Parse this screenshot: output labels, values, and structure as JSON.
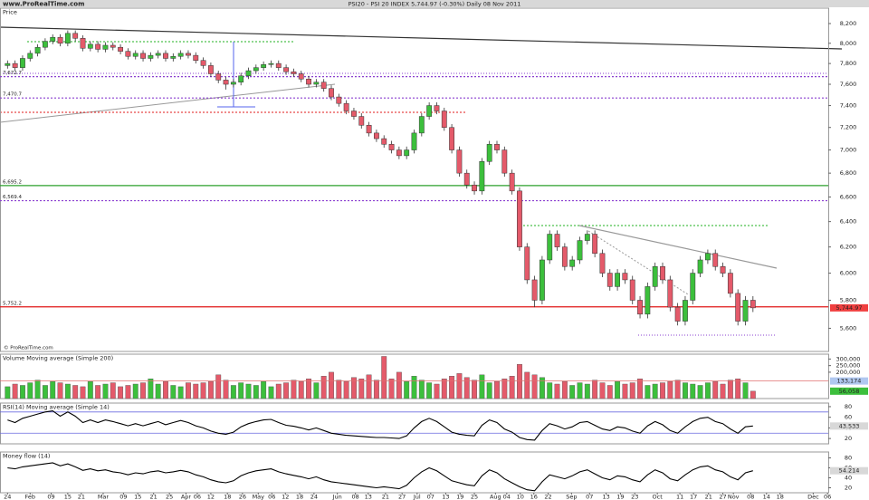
{
  "header": {
    "site": "www.ProRealTime.com",
    "title": "PSI20 - PSI 20 INDEX    5,744.97 (-0.30%)    Daily  08 Nov 2011"
  },
  "chart_data": [
    {
      "type": "candlestick",
      "title": "Price",
      "watermark": "© ProRealTime.com",
      "open": [
        7780,
        7800,
        7760,
        7850,
        7900,
        7960,
        8020,
        8060,
        8000,
        8100,
        8050,
        7950,
        7990,
        7940,
        7980,
        7960,
        7920,
        7870,
        7900,
        7850,
        7880,
        7900,
        7850,
        7870,
        7900,
        7880,
        7830,
        7780,
        7700,
        7640,
        7600,
        7620,
        7680,
        7730,
        7760,
        7790,
        7800,
        7760,
        7720,
        7700,
        7650,
        7600,
        7620,
        7560,
        7480,
        7420,
        7350,
        7300,
        7220,
        7150,
        7100,
        7050,
        7000,
        6950,
        7000,
        7150,
        7300,
        7400,
        7350,
        7200,
        7000,
        6800,
        6700,
        6650,
        6900,
        7050,
        7000,
        6800,
        6650,
        6200,
        5950,
        5800,
        6100,
        6300,
        6200,
        6050,
        6100,
        6250,
        6300,
        6150,
        6000,
        5900,
        6000,
        5950,
        5800,
        5700,
        5900,
        6050,
        5950,
        5750,
        5650,
        5800,
        6000,
        6100,
        6150,
        6050,
        6000,
        5850,
        5650,
        5800
      ],
      "high": [
        7830,
        7830,
        7880,
        7930,
        7990,
        8050,
        8090,
        8090,
        8130,
        8130,
        8080,
        8020,
        8020,
        8010,
        8010,
        7990,
        7950,
        7930,
        7930,
        7910,
        7930,
        7930,
        7900,
        7930,
        7930,
        7910,
        7860,
        7810,
        7730,
        7670,
        7650,
        7710,
        7760,
        7790,
        7820,
        7830,
        7830,
        7790,
        7750,
        7730,
        7680,
        7650,
        7650,
        7590,
        7510,
        7450,
        7380,
        7330,
        7250,
        7180,
        7130,
        7080,
        7030,
        7030,
        7180,
        7330,
        7430,
        7430,
        7380,
        7230,
        7030,
        6830,
        6730,
        6930,
        7080,
        7080,
        7030,
        6830,
        6680,
        6230,
        5980,
        6130,
        6330,
        6330,
        6230,
        6130,
        6280,
        6330,
        6330,
        6180,
        6030,
        6030,
        6030,
        5980,
        5830,
        5930,
        6080,
        6080,
        5980,
        5780,
        5830,
        6030,
        6130,
        6180,
        6180,
        6080,
        6030,
        5880,
        5830,
        5830
      ],
      "low": [
        7750,
        7730,
        7730,
        7820,
        7870,
        7930,
        7990,
        7970,
        7970,
        8020,
        7920,
        7920,
        7910,
        7910,
        7930,
        7890,
        7840,
        7840,
        7820,
        7820,
        7850,
        7820,
        7820,
        7840,
        7850,
        7800,
        7750,
        7670,
        7610,
        7550,
        7570,
        7590,
        7650,
        7700,
        7730,
        7760,
        7730,
        7690,
        7670,
        7620,
        7570,
        7570,
        7530,
        7450,
        7390,
        7320,
        7270,
        7190,
        7120,
        7070,
        7020,
        6970,
        6920,
        6920,
        6970,
        7120,
        7270,
        7320,
        7170,
        6970,
        6770,
        6670,
        6620,
        6620,
        6870,
        6970,
        6770,
        6620,
        6170,
        5920,
        5750,
        5770,
        6070,
        6170,
        6020,
        6020,
        6070,
        6220,
        6120,
        5970,
        5870,
        5870,
        5920,
        5770,
        5670,
        5670,
        5870,
        5920,
        5720,
        5620,
        5620,
        5770,
        5970,
        6070,
        6020,
        5970,
        5820,
        5620,
        5620,
        5715
      ],
      "close": [
        7800,
        7760,
        7850,
        7900,
        7960,
        8020,
        8060,
        8000,
        8100,
        8050,
        7950,
        7990,
        7940,
        7980,
        7960,
        7920,
        7870,
        7900,
        7850,
        7880,
        7900,
        7850,
        7870,
        7900,
        7880,
        7830,
        7780,
        7700,
        7640,
        7600,
        7620,
        7680,
        7730,
        7760,
        7790,
        7800,
        7760,
        7720,
        7700,
        7650,
        7600,
        7620,
        7560,
        7480,
        7420,
        7350,
        7300,
        7220,
        7150,
        7100,
        7050,
        7000,
        6950,
        7000,
        7150,
        7300,
        7400,
        7350,
        7200,
        7000,
        6800,
        6700,
        6650,
        6900,
        7050,
        7000,
        6800,
        6650,
        6200,
        5950,
        5800,
        6100,
        6300,
        6200,
        6050,
        6100,
        6250,
        6300,
        6150,
        6000,
        5900,
        6000,
        5950,
        5800,
        5700,
        5900,
        6050,
        5950,
        5750,
        5650,
        5800,
        6000,
        6100,
        6150,
        6050,
        6000,
        5850,
        5650,
        5800,
        5745
      ],
      "up_color": "#3cbf3c",
      "down_color": "#e45a6a",
      "xlim": [
        -1,
        109
      ],
      "ylim": [
        5440,
        8350
      ],
      "log": true,
      "yticks": [
        {
          "value": 5600,
          "label": "5,600"
        },
        {
          "value": 5800,
          "label": "5,800"
        },
        {
          "value": 6000,
          "label": "6,000"
        },
        {
          "value": 6200,
          "label": "6,200"
        },
        {
          "value": 6400,
          "label": "6,400"
        },
        {
          "value": 6600,
          "label": "6,600"
        },
        {
          "value": 6800,
          "label": "6,800"
        },
        {
          "value": 7000,
          "label": "7,000"
        },
        {
          "value": 7200,
          "label": "7,200"
        },
        {
          "value": 7400,
          "label": "7,400"
        },
        {
          "value": 7600,
          "label": "7,600"
        },
        {
          "value": 7800,
          "label": "7,800"
        },
        {
          "value": 8000,
          "label": "8,000"
        },
        {
          "value": 8200,
          "label": "8,200"
        }
      ],
      "levels": [
        {
          "value": 7672.7,
          "label": "7,672.7",
          "color": "#8a3fd0",
          "style": "dotted"
        },
        {
          "value": 7470.7,
          "label": "7,470.7",
          "color": "#8a3fd0",
          "style": "dotted"
        },
        {
          "value": 6695.2,
          "label": "6,695.2",
          "color": "#2ca02c",
          "style": "solid"
        },
        {
          "value": 6569.4,
          "label": "6,569.4",
          "color": "#8a3fd0",
          "style": "dotted"
        },
        {
          "value": 5752.2,
          "label": "5,752.2",
          "color": "#e01818",
          "style": "solid"
        }
      ],
      "last": {
        "value": 5744.97,
        "label": "5,744.97",
        "color": "#f04040"
      }
    },
    {
      "type": "bar",
      "title": "Volume Moving average (Simple 200)",
      "values": [
        90000,
        110000,
        100000,
        120000,
        140000,
        100000,
        130000,
        120000,
        110000,
        100000,
        90000,
        130000,
        100000,
        110000,
        120000,
        90000,
        100000,
        110000,
        120000,
        150000,
        110000,
        130000,
        100000,
        90000,
        120000,
        110000,
        120000,
        130000,
        180000,
        140000,
        100000,
        120000,
        110000,
        100000,
        130000,
        90000,
        110000,
        120000,
        140000,
        130000,
        150000,
        120000,
        170000,
        200000,
        140000,
        130000,
        160000,
        150000,
        180000,
        140000,
        320000,
        150000,
        200000,
        130000,
        170000,
        140000,
        120000,
        110000,
        150000,
        170000,
        190000,
        160000,
        140000,
        180000,
        120000,
        130000,
        150000,
        170000,
        260000,
        200000,
        180000,
        160000,
        120000,
        110000,
        130000,
        100000,
        120000,
        110000,
        140000,
        120000,
        100000,
        130000,
        110000,
        120000,
        150000,
        100000,
        110000,
        120000,
        130000,
        140000,
        120000,
        110000,
        100000,
        120000,
        130000,
        110000,
        140000,
        150000,
        120000,
        56058
      ],
      "xlim": [
        -1,
        109
      ],
      "ylim": [
        0,
        330000
      ],
      "yticks": [
        {
          "value": 200000,
          "label": "200,000"
        },
        {
          "value": 250000,
          "label": "250,000"
        },
        {
          "value": 300000,
          "label": "300,000"
        }
      ],
      "ma": {
        "value": 133174,
        "label": "133,174",
        "color": "#b0c8f0"
      },
      "last": {
        "value": 56058,
        "label": "56,058",
        "color": "#3cbf3c"
      }
    },
    {
      "type": "line",
      "title": "RSI(14) Moving average (Simple 14)",
      "values": [
        55,
        50,
        58,
        62,
        66,
        70,
        72,
        62,
        70,
        62,
        50,
        55,
        50,
        55,
        52,
        48,
        44,
        48,
        44,
        48,
        52,
        46,
        50,
        54,
        50,
        44,
        40,
        34,
        30,
        28,
        32,
        42,
        48,
        52,
        55,
        56,
        50,
        45,
        43,
        40,
        36,
        40,
        35,
        30,
        28,
        26,
        25,
        24,
        23,
        22,
        22,
        21,
        20,
        25,
        40,
        52,
        58,
        52,
        42,
        32,
        28,
        26,
        25,
        45,
        55,
        50,
        38,
        32,
        22,
        18,
        17,
        35,
        48,
        44,
        38,
        42,
        50,
        52,
        45,
        38,
        35,
        42,
        40,
        34,
        30,
        44,
        52,
        46,
        35,
        30,
        42,
        52,
        58,
        60,
        52,
        48,
        38,
        30,
        42,
        43.533
      ],
      "color": "#000000",
      "xlim": [
        -1,
        109
      ],
      "ylim": [
        10,
        85
      ],
      "yticks": [
        20,
        40,
        60,
        80
      ],
      "bands": [
        30,
        70
      ],
      "last": {
        "value": 43.533,
        "label": "43.533",
        "color": "#d8d8d8"
      }
    },
    {
      "type": "line",
      "title": "Money flow (14)",
      "values": [
        60,
        58,
        62,
        64,
        66,
        68,
        70,
        64,
        68,
        62,
        55,
        58,
        54,
        56,
        52,
        50,
        46,
        50,
        48,
        52,
        54,
        50,
        52,
        55,
        52,
        46,
        42,
        36,
        32,
        30,
        34,
        44,
        50,
        54,
        56,
        58,
        52,
        48,
        45,
        42,
        38,
        42,
        36,
        32,
        30,
        28,
        26,
        24,
        22,
        20,
        22,
        20,
        18,
        25,
        40,
        52,
        60,
        54,
        44,
        34,
        30,
        26,
        24,
        44,
        56,
        50,
        38,
        30,
        22,
        16,
        14,
        32,
        46,
        42,
        38,
        44,
        52,
        56,
        48,
        40,
        36,
        44,
        42,
        36,
        32,
        46,
        56,
        50,
        38,
        34,
        46,
        56,
        62,
        64,
        56,
        52,
        42,
        36,
        50,
        54.214
      ],
      "color": "#000000",
      "xlim": [
        -1,
        109
      ],
      "ylim": [
        10,
        90
      ],
      "yticks": [
        20,
        40,
        60,
        80
      ],
      "last": {
        "value": 54.214,
        "label": "54.214",
        "color": "#d8d8d8"
      },
      "xticks": [
        {
          "value": 0,
          "label": "24"
        },
        {
          "value": 3,
          "label": "Feb"
        },
        {
          "value": 5.8,
          "label": "09"
        },
        {
          "value": 8,
          "label": "15"
        },
        {
          "value": 9.8,
          "label": "21"
        },
        {
          "value": 12.7,
          "label": "Mar"
        },
        {
          "value": 15.4,
          "label": "09"
        },
        {
          "value": 17.3,
          "label": "15"
        },
        {
          "value": 19.4,
          "label": "21"
        },
        {
          "value": 21.5,
          "label": "25"
        },
        {
          "value": 23.7,
          "label": "Apr"
        },
        {
          "value": 25.2,
          "label": "06"
        },
        {
          "value": 27,
          "label": "12"
        },
        {
          "value": 29.2,
          "label": "18"
        },
        {
          "value": 31.2,
          "label": "26"
        },
        {
          "value": 33.3,
          "label": "May"
        },
        {
          "value": 35.1,
          "label": "06"
        },
        {
          "value": 36.9,
          "label": "12"
        },
        {
          "value": 38.8,
          "label": "18"
        },
        {
          "value": 40.7,
          "label": "24"
        },
        {
          "value": 43.8,
          "label": "Jun"
        },
        {
          "value": 46.2,
          "label": "08"
        },
        {
          "value": 47.9,
          "label": "13"
        },
        {
          "value": 50.2,
          "label": "21"
        },
        {
          "value": 52.4,
          "label": "27"
        },
        {
          "value": 54.4,
          "label": "Jul"
        },
        {
          "value": 56.2,
          "label": "07"
        },
        {
          "value": 58.2,
          "label": "13"
        },
        {
          "value": 60.1,
          "label": "19"
        },
        {
          "value": 62,
          "label": "25"
        },
        {
          "value": 64.8,
          "label": "Aug"
        },
        {
          "value": 66.3,
          "label": "04"
        },
        {
          "value": 68.1,
          "label": "10"
        },
        {
          "value": 69.9,
          "label": "16"
        },
        {
          "value": 71.8,
          "label": "22"
        },
        {
          "value": 74.9,
          "label": "Sep"
        },
        {
          "value": 77.3,
          "label": "07"
        },
        {
          "value": 79.5,
          "label": "13"
        },
        {
          "value": 81.4,
          "label": "19"
        },
        {
          "value": 83.3,
          "label": "23"
        },
        {
          "value": 86.3,
          "label": "Oct"
        },
        {
          "value": 89.3,
          "label": "11"
        },
        {
          "value": 91.1,
          "label": "17"
        },
        {
          "value": 93.1,
          "label": "21"
        },
        {
          "value": 95,
          "label": "27"
        },
        {
          "value": 96.4,
          "label": "Nov"
        },
        {
          "value": 98.7,
          "label": "08"
        },
        {
          "value": 100.8,
          "label": "14"
        },
        {
          "value": 102.6,
          "label": "18"
        },
        {
          "value": 107,
          "label": "Dec"
        },
        {
          "value": 108.9,
          "label": "06"
        }
      ]
    }
  ]
}
